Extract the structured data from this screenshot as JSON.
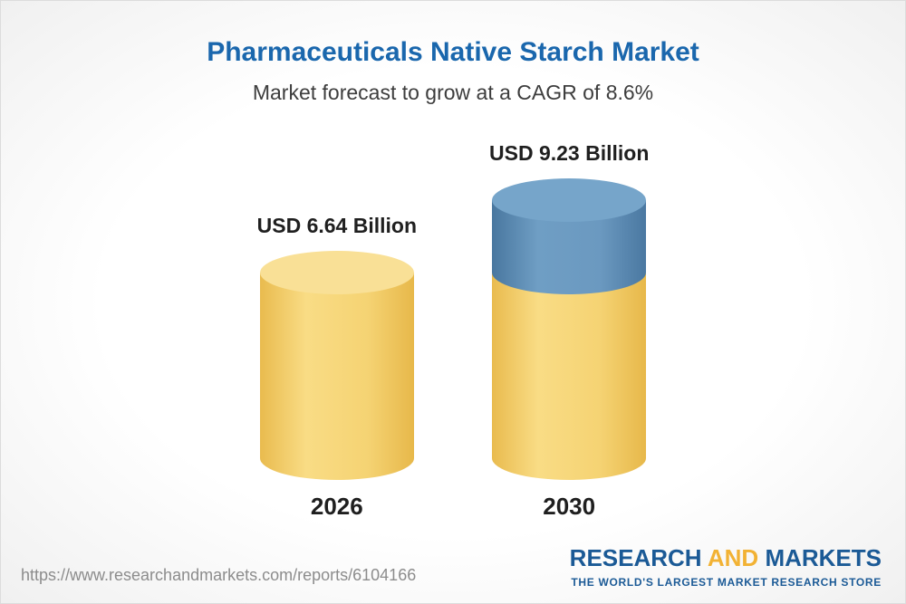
{
  "header": {
    "title": "Pharmaceuticals Native Starch Market",
    "subtitle": "Market forecast to grow at a CAGR of 8.6%"
  },
  "chart_data": {
    "type": "bar",
    "title": "Pharmaceuticals Native Starch Market",
    "subtitle": "Market forecast to grow at a CAGR of 8.6%",
    "unit": "USD Billion",
    "cagr_percent": 8.6,
    "categories": [
      "2026",
      "2030"
    ],
    "values": [
      6.64,
      9.23
    ],
    "ylim": [
      0,
      10
    ],
    "legend": "none",
    "grid": false,
    "bars": [
      {
        "year": "2026",
        "label": "USD 6.64 Billion",
        "value": 6.64,
        "segments": [
          {
            "value": 6.64,
            "color": "yellow"
          }
        ]
      },
      {
        "year": "2030",
        "label": "USD 9.23 Billion",
        "value": 9.23,
        "segments": [
          {
            "value": 6.64,
            "color": "yellow"
          },
          {
            "value": 2.59,
            "color": "blue"
          }
        ]
      }
    ]
  },
  "footer": {
    "url": "https://www.researchandmarkets.com/reports/6104166",
    "logo": {
      "research": "RESEARCH",
      "and": "AND",
      "markets": "MARKETS",
      "tagline": "THE WORLD'S LARGEST MARKET RESEARCH STORE"
    }
  },
  "colors": {
    "title_blue": "#1a67ad",
    "bar_yellow": "#f5d373",
    "bar_blue": "#5d8fb9",
    "logo_blue": "#1b5a96",
    "logo_gold": "#f2b234",
    "url_gray": "#8c8c8c"
  }
}
